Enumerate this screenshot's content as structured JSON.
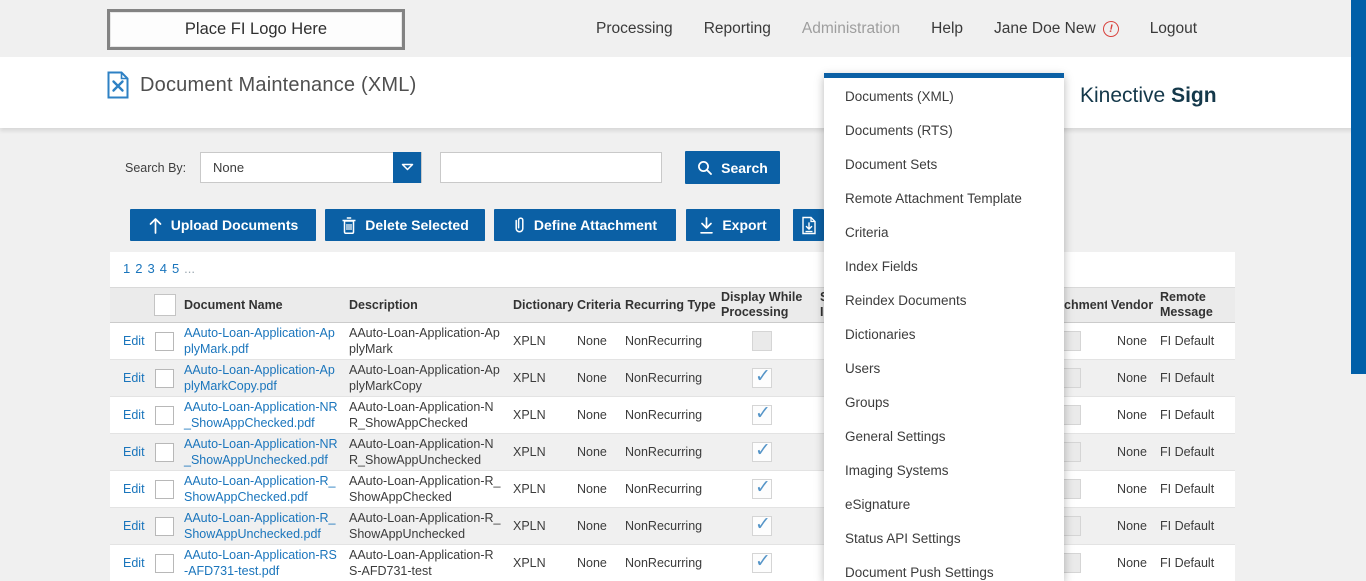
{
  "header": {
    "logo_placeholder": "Place FI Logo Here",
    "nav": {
      "processing": "Processing",
      "reporting": "Reporting",
      "administration": "Administration",
      "help": "Help",
      "user": "Jane Doe New",
      "logout": "Logout"
    }
  },
  "title_bar": {
    "page_title": "Document Maintenance (XML)",
    "brand_name": "Kinective",
    "brand_suffix": "Sign"
  },
  "admin_menu": {
    "items": [
      "Documents (XML)",
      "Documents (RTS)",
      "Document Sets",
      "Remote Attachment Template",
      "Criteria",
      "Index Fields",
      "Reindex Documents",
      "Dictionaries",
      "Users",
      "Groups",
      "General Settings",
      "Imaging Systems",
      "eSignature",
      "Status API Settings",
      "Document Push Settings"
    ]
  },
  "search": {
    "label": "Search By:",
    "dropdown_value": "None",
    "input_value": "",
    "button_label": "Search"
  },
  "toolbar": {
    "upload_label": "Upload Documents",
    "delete_label": "Delete Selected",
    "define_attachment_label": "Define Attachment",
    "export_label": "Export"
  },
  "pagination": {
    "pages": [
      "1",
      "2",
      "3",
      "4",
      "5"
    ],
    "ellipsis": "..."
  },
  "table": {
    "headers": {
      "document_name": "Document Name",
      "description": "Description",
      "dictionary": "Dictionary",
      "criteria": "Criteria",
      "recurring_type": "Recurring Type",
      "display_while_processing_line1": "Display While",
      "display_while_processing_line2": "Processing",
      "obscured_line1": "S",
      "obscured_line2": "I",
      "attachment_partial": "chment",
      "vendor": "Vendor",
      "remote_line1": "Remote",
      "remote_line2": "Message"
    },
    "rows": [
      {
        "edit": "Edit",
        "document_name": "AAuto-Loan-Application-ApplyMark.pdf",
        "description": "AAuto-Loan-Application-ApplyMark",
        "dictionary": "XPLN",
        "criteria": "None",
        "recurring_type": "NonRecurring",
        "display_while_processing": false,
        "vendor": "None",
        "remote_message": "FI Default"
      },
      {
        "edit": "Edit",
        "document_name": "AAuto-Loan-Application-ApplyMarkCopy.pdf",
        "description": "AAuto-Loan-Application-ApplyMarkCopy",
        "dictionary": "XPLN",
        "criteria": "None",
        "recurring_type": "NonRecurring",
        "display_while_processing": true,
        "vendor": "None",
        "remote_message": "FI Default"
      },
      {
        "edit": "Edit",
        "document_name": "AAuto-Loan-Application-NR_ShowAppChecked.pdf",
        "description": "AAuto-Loan-Application-NR_ShowAppChecked",
        "dictionary": "XPLN",
        "criteria": "None",
        "recurring_type": "NonRecurring",
        "display_while_processing": true,
        "vendor": "None",
        "remote_message": "FI Default"
      },
      {
        "edit": "Edit",
        "document_name": "AAuto-Loan-Application-NR_ShowAppUnchecked.pdf",
        "description": "AAuto-Loan-Application-NR_ShowAppUnchecked",
        "dictionary": "XPLN",
        "criteria": "None",
        "recurring_type": "NonRecurring",
        "display_while_processing": true,
        "vendor": "None",
        "remote_message": "FI Default"
      },
      {
        "edit": "Edit",
        "document_name": "AAuto-Loan-Application-R_ShowAppChecked.pdf",
        "description": "AAuto-Loan-Application-R_ShowAppChecked",
        "dictionary": "XPLN",
        "criteria": "None",
        "recurring_type": "NonRecurring",
        "display_while_processing": true,
        "vendor": "None",
        "remote_message": "FI Default"
      },
      {
        "edit": "Edit",
        "document_name": "AAuto-Loan-Application-R_ShowAppUnchecked.pdf",
        "description": "AAuto-Loan-Application-R_ShowAppUnchecked",
        "dictionary": "XPLN",
        "criteria": "None",
        "recurring_type": "NonRecurring",
        "display_while_processing": true,
        "vendor": "None",
        "remote_message": "FI Default"
      },
      {
        "edit": "Edit",
        "document_name": "AAuto-Loan-Application-RS-AFD731-test.pdf",
        "description": "AAuto-Loan-Application-RS-AFD731-test",
        "dictionary": "XPLN",
        "criteria": "None",
        "recurring_type": "NonRecurring",
        "display_while_processing": true,
        "vendor": "None",
        "remote_message": "FI Default"
      }
    ]
  },
  "colors": {
    "accent_blue": "#0b60a5",
    "link_blue": "#1a75bc",
    "check_blue": "#5695c8",
    "brand_navy": "#14384a",
    "warning_red": "#d9433e"
  }
}
